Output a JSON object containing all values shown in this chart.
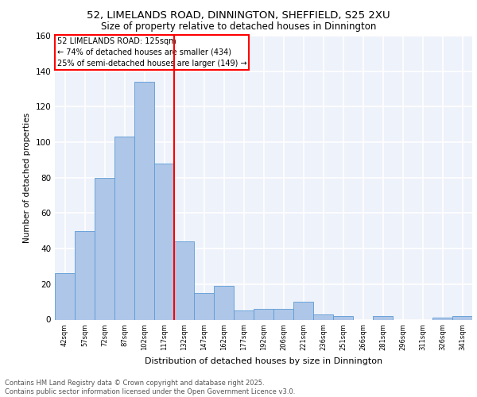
{
  "title_line1": "52, LIMELANDS ROAD, DINNINGTON, SHEFFIELD, S25 2XU",
  "title_line2": "Size of property relative to detached houses in Dinnington",
  "xlabel": "Distribution of detached houses by size in Dinnington",
  "ylabel": "Number of detached properties",
  "bar_labels": [
    "42sqm",
    "57sqm",
    "72sqm",
    "87sqm",
    "102sqm",
    "117sqm",
    "132sqm",
    "147sqm",
    "162sqm",
    "177sqm",
    "192sqm",
    "206sqm",
    "221sqm",
    "236sqm",
    "251sqm",
    "266sqm",
    "281sqm",
    "296sqm",
    "311sqm",
    "326sqm",
    "341sqm"
  ],
  "bar_values": [
    26,
    50,
    80,
    103,
    134,
    88,
    44,
    15,
    19,
    5,
    6,
    6,
    10,
    3,
    2,
    0,
    2,
    0,
    0,
    1,
    2
  ],
  "bar_color": "#aec6e8",
  "bar_edgecolor": "#5b9bd5",
  "background_color": "#eef2fa",
  "grid_color": "#ffffff",
  "vline_x": 5.5,
  "vline_color": "red",
  "annotation_title": "52 LIMELANDS ROAD: 125sqm",
  "annotation_line1": "← 74% of detached houses are smaller (434)",
  "annotation_line2": "25% of semi-detached houses are larger (149) →",
  "box_facecolor": "white",
  "box_edgecolor": "red",
  "ylim": [
    0,
    160
  ],
  "yticks": [
    0,
    20,
    40,
    60,
    80,
    100,
    120,
    140,
    160
  ],
  "footer_line1": "Contains HM Land Registry data © Crown copyright and database right 2025.",
  "footer_line2": "Contains public sector information licensed under the Open Government Licence v3.0."
}
